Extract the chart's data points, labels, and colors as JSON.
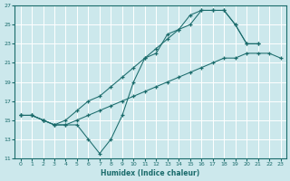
{
  "bg_color": "#cce8ec",
  "line_color": "#1a6b6b",
  "grid_color": "#ffffff",
  "xlabel": "Humidex (Indice chaleur)",
  "xlim": [
    -0.5,
    23.5
  ],
  "ylim": [
    11,
    27
  ],
  "xticks": [
    0,
    1,
    2,
    3,
    4,
    5,
    6,
    7,
    8,
    9,
    10,
    11,
    12,
    13,
    14,
    15,
    16,
    17,
    18,
    19,
    20,
    21,
    22,
    23
  ],
  "yticks": [
    11,
    13,
    15,
    17,
    19,
    21,
    23,
    25,
    27
  ],
  "s1_x": [
    0,
    1,
    2,
    3,
    4,
    5,
    6,
    7,
    8,
    9,
    10,
    11,
    12,
    13,
    14,
    15,
    16,
    17,
    18,
    19,
    20,
    21
  ],
  "s1_y": [
    15.5,
    15.5,
    15.0,
    14.5,
    14.5,
    14.5,
    13.0,
    11.5,
    13.0,
    15.5,
    19.0,
    21.5,
    22.0,
    24.0,
    24.5,
    25.0,
    26.5,
    26.5,
    26.5,
    25.0,
    23.0,
    23.0
  ],
  "s2_x": [
    0,
    1,
    2,
    3,
    4,
    5,
    6,
    7,
    8,
    9,
    10,
    11,
    12,
    13,
    14,
    15,
    16,
    17,
    18,
    19,
    20,
    21
  ],
  "s2_y": [
    15.5,
    15.5,
    15.0,
    14.5,
    15.0,
    16.0,
    17.0,
    17.5,
    18.5,
    19.5,
    20.5,
    21.5,
    22.5,
    23.5,
    24.5,
    26.0,
    26.5,
    26.5,
    26.5,
    25.0,
    23.0,
    23.0
  ],
  "s3_x": [
    0,
    1,
    2,
    3,
    4,
    5,
    6,
    7,
    8,
    9,
    10,
    11,
    12,
    13,
    14,
    15,
    16,
    17,
    18,
    19,
    20,
    21,
    22,
    23
  ],
  "s3_y": [
    15.5,
    15.5,
    15.0,
    14.5,
    14.5,
    15.0,
    15.5,
    16.0,
    16.5,
    17.0,
    17.5,
    18.0,
    18.5,
    19.0,
    19.5,
    20.0,
    20.5,
    21.0,
    21.5,
    21.5,
    22.0,
    22.0,
    22.0,
    21.5
  ]
}
